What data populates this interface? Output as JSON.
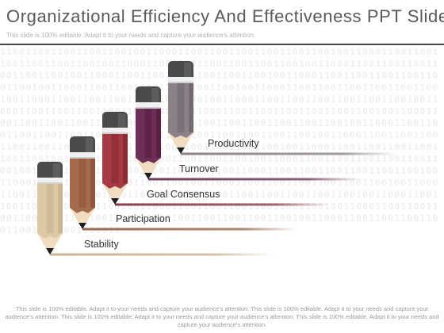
{
  "title": "Organizational Efficiency And Effectiveness PPT Slides",
  "subtitle": "This slide is 100% editable. Adapt it to your needs and capture your audience's attention.",
  "background_pattern": "1100110011001100110010011000110011001100110011001100100110001100110011001100110011001001100011001100110011001100110010011000110011001100110011001100100110001100110011001100110011001001100011001100110011001100110010011000110011001100110011001100100110001100110011001100110011001001100011001100110011001100110010011000110011001100110011001100100110001100110011001100110011001001100011001100110011001100110010011000110011001100110011001100100110001100110011001100110011001001100011001100110011001100110010011000110011001100110011001100100110001100110011001100110011001001100011001100110011001100110010011000110011001100110011001100100110001100110011001100110011001001100011001100110011001100110010011000110011001100110011001100100110001100110011001100110011001001100011001100110011001100110010011000110011001100110011001100100110001100110011001100110011001001100011001100110011001100110010011000110011001100110011001100100110001100110011001100110011001001100011001100110011001100110010011000110011001100110011001100100110001100110011001100110011001001100011",
  "steps": [
    {
      "label": "Stability",
      "color": "#ddc8a6",
      "shade": "#c7b08b",
      "line": "#c9b494"
    },
    {
      "label": "Participation",
      "color": "#a46b4c",
      "shade": "#8a5238",
      "line": "#9a6a50"
    },
    {
      "label": "Goal Consensus",
      "color": "#a53a44",
      "shade": "#86252f",
      "line": "#8a4048"
    },
    {
      "label": "Turnover",
      "color": "#6e2e55",
      "shade": "#551d40",
      "line": "#6e3e5a"
    },
    {
      "label": "Productivity",
      "color": "#8d8189",
      "shade": "#6f636b",
      "line": "#8a8288"
    }
  ],
  "footer": "This slide is 100% editable. Adapt it to your needs and capture your audience's attention. This slide is 100% editable. Adapt it to your needs and capture your audience's attention. This slide is 100% editable. Adapt it to your needs and capture your audience's attention. This slide is 100% editable. Adapt it to your needs and capture your audience's attention."
}
